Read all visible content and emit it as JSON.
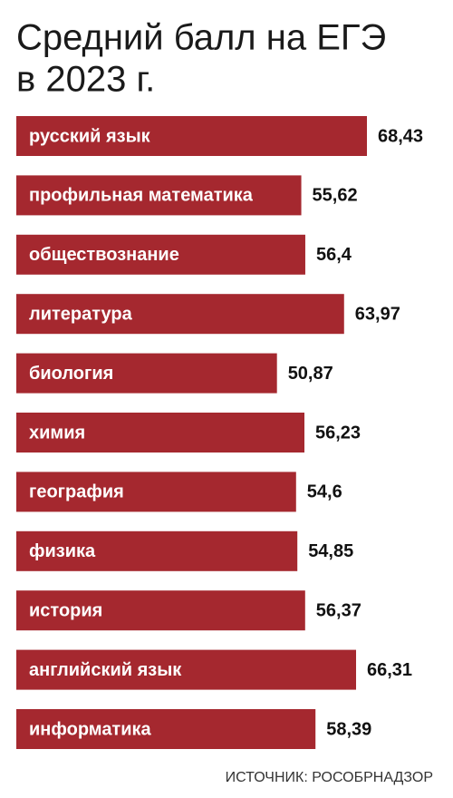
{
  "chart_data": {
    "type": "bar",
    "orientation": "horizontal",
    "title": [
      "Средний балл на ЕГЭ",
      "в 2023 г."
    ],
    "categories": [
      "русский язык",
      "профильная математика",
      "обществознание",
      "литература",
      "биология",
      "химия",
      "география",
      "физика",
      "история",
      "английский язык",
      "информатика"
    ],
    "values": [
      68.43,
      55.62,
      56.4,
      63.97,
      50.87,
      56.23,
      54.6,
      54.85,
      56.37,
      66.31,
      58.39
    ],
    "value_labels": [
      "68,43",
      "55,62",
      "56,4",
      "63,97",
      "50,87",
      "56,23",
      "54,6",
      "54,85",
      "56,37",
      "66,31",
      "58,39"
    ],
    "color": "#a5282f",
    "source": "ИСТОЧНИК: РОСОБРНАДЗОР"
  }
}
